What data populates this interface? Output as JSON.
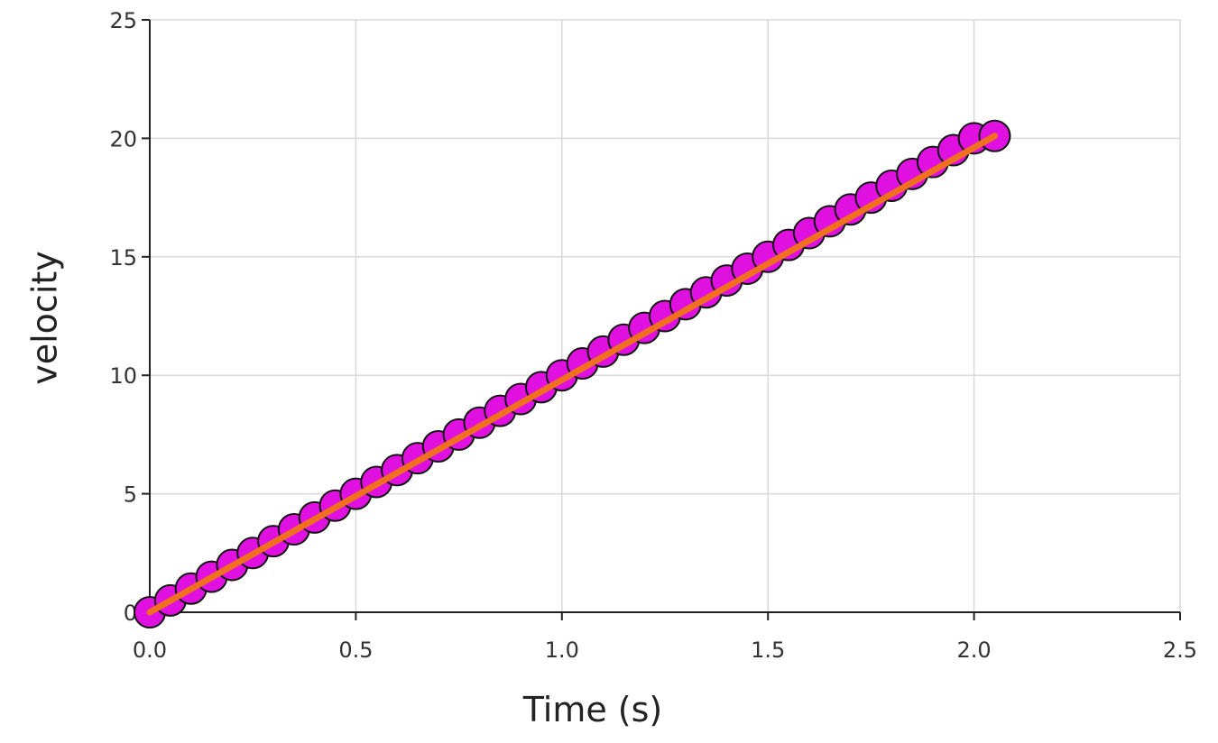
{
  "chart_data": {
    "type": "scatter",
    "title": "",
    "xlabel": "Time (s)",
    "ylabel": "velocity",
    "xlim": [
      0,
      2.5
    ],
    "ylim": [
      0,
      25
    ],
    "x_ticks": [
      0,
      0.5,
      1,
      1.5,
      2,
      2.5
    ],
    "x_tick_labels": [
      "0.0",
      "0.5",
      "1.0",
      "1.5",
      "2.0",
      "2.5"
    ],
    "y_ticks": [
      0,
      5,
      10,
      15,
      20,
      25
    ],
    "y_tick_labels": [
      "0",
      "5",
      "10",
      "15",
      "20",
      "25"
    ],
    "grid": true,
    "legend": "none",
    "series": [
      {
        "kind": "markers",
        "color": "#e011e0",
        "edge_color": "#111111",
        "x": [
          0,
          0.05,
          0.1,
          0.15,
          0.2,
          0.25,
          0.3,
          0.35,
          0.4,
          0.45,
          0.5,
          0.55,
          0.6,
          0.65,
          0.7,
          0.75,
          0.8,
          0.85,
          0.9,
          0.95,
          1.0,
          1.05,
          1.1,
          1.15,
          1.2,
          1.25,
          1.3,
          1.35,
          1.4,
          1.45,
          1.5,
          1.55,
          1.6,
          1.65,
          1.7,
          1.75,
          1.8,
          1.85,
          1.9,
          1.95,
          2.0,
          2.05
        ],
        "y": [
          0,
          0.5,
          1.0,
          1.5,
          2.0,
          2.5,
          3.0,
          3.5,
          4.0,
          4.5,
          5.0,
          5.5,
          6.0,
          6.5,
          7.0,
          7.5,
          8.0,
          8.5,
          9.0,
          9.5,
          10.0,
          10.5,
          11.0,
          11.5,
          12.0,
          12.5,
          13.0,
          13.5,
          14.0,
          14.5,
          15.0,
          15.5,
          16.0,
          16.5,
          17.0,
          17.5,
          18.0,
          18.5,
          19.0,
          19.5,
          20.0,
          20.1
        ]
      },
      {
        "kind": "line",
        "color": "#f07020",
        "x": [
          0,
          2.05
        ],
        "y": [
          0,
          20.1
        ]
      }
    ]
  }
}
